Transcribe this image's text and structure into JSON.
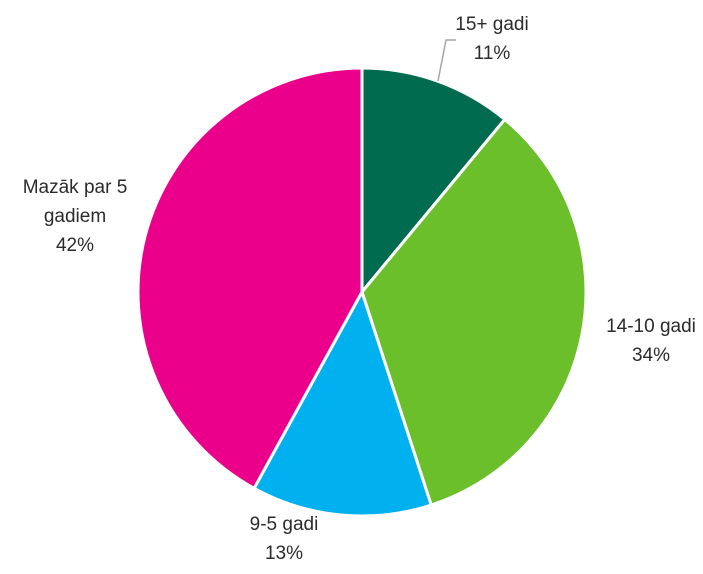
{
  "chart_data": {
    "type": "pie",
    "title": "",
    "slices": [
      {
        "label": [
          "15+ gadi"
        ],
        "value": 11,
        "value_label": "11%",
        "color": "#006b4f"
      },
      {
        "label": [
          "14-10 gadi"
        ],
        "value": 34,
        "value_label": "34%",
        "color": "#6bbf2a"
      },
      {
        "label": [
          "9-5 gadi"
        ],
        "value": 13,
        "value_label": "13%",
        "color": "#00b0ef"
      },
      {
        "label": [
          "Mazāk par 5",
          "gadiem"
        ],
        "value": 42,
        "value_label": "42%",
        "color": "#eb008b"
      }
    ],
    "start_angle_deg": 0,
    "direction": "clockwise",
    "legend": "none"
  }
}
